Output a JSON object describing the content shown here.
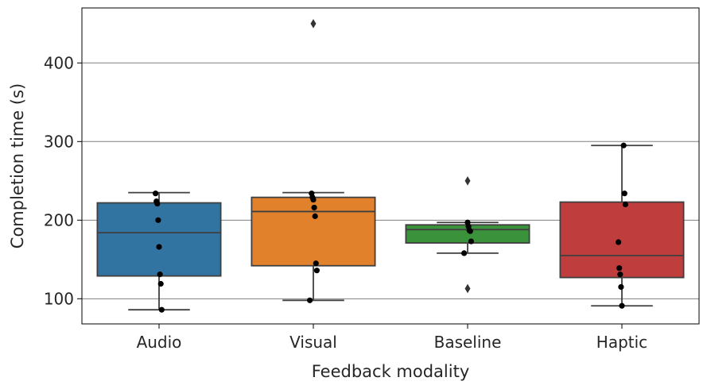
{
  "chart_data": {
    "type": "box",
    "xlabel": "Feedback modality",
    "ylabel": "Completion time (s)",
    "ylim": [
      68,
      470
    ],
    "yticks": [
      100,
      200,
      300,
      400
    ],
    "grid": "horizontal",
    "categories": [
      "Audio",
      "Visual",
      "Baseline",
      "Haptic"
    ],
    "colors": [
      "#3274a1",
      "#e1812c",
      "#3a923a",
      "#c03d3e"
    ],
    "boxes": [
      {
        "category": "Audio",
        "whisker_low": 86,
        "q1": 129,
        "median": 184,
        "q3": 222,
        "whisker_high": 235,
        "points": [
          234,
          224,
          221,
          200,
          166,
          131,
          119,
          86
        ],
        "outliers": []
      },
      {
        "category": "Visual",
        "whisker_low": 98,
        "q1": 142,
        "median": 211,
        "q3": 229,
        "whisker_high": 235,
        "points": [
          234,
          229,
          226,
          216,
          205,
          145,
          136,
          98
        ],
        "outliers": [
          450
        ]
      },
      {
        "category": "Baseline",
        "whisker_low": 158,
        "q1": 171,
        "median": 188,
        "q3": 194,
        "whisker_high": 197,
        "points": [
          197,
          192,
          187,
          186,
          173,
          158
        ],
        "outliers": [
          250,
          113
        ]
      },
      {
        "category": "Haptic",
        "whisker_low": 91,
        "q1": 127,
        "median": 155,
        "q3": 223,
        "whisker_high": 295,
        "points": [
          295,
          234,
          220,
          172,
          139,
          131,
          115,
          91
        ],
        "outliers": []
      }
    ]
  }
}
